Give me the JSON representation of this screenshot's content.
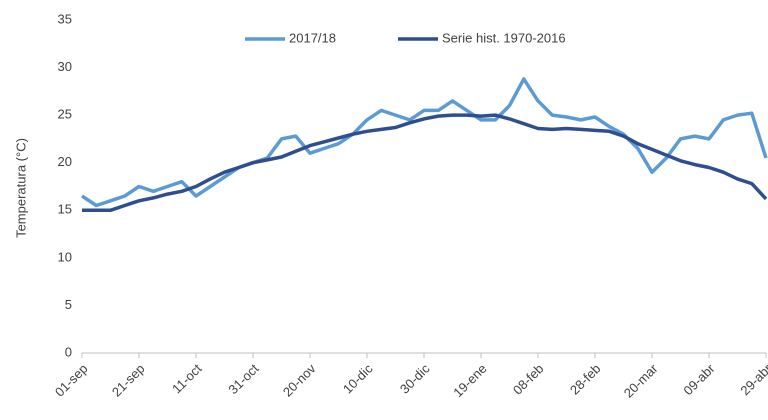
{
  "chart_data": {
    "type": "line",
    "y_label": "Temperatura (°C)",
    "categories": [
      "01-sep",
      null,
      null,
      null,
      "21-sep",
      null,
      null,
      null,
      "11-oct",
      null,
      null,
      null,
      "31-oct",
      null,
      null,
      null,
      "20-nov",
      null,
      null,
      null,
      "10-dic",
      null,
      null,
      null,
      "30-dic",
      null,
      null,
      null,
      "19-ene",
      null,
      null,
      null,
      "08-feb",
      null,
      null,
      null,
      "28-feb",
      null,
      null,
      null,
      "20-mar",
      null,
      null,
      null,
      "09-abr",
      null,
      null,
      null,
      "29-abr"
    ],
    "series": [
      {
        "name": "2017/18",
        "color": "#5b9bd5",
        "values": [
          16.5,
          15.5,
          16,
          16.5,
          17.5,
          17,
          17.5,
          18,
          16.5,
          17.5,
          18.5,
          19.5,
          20,
          20.5,
          22.5,
          22.8,
          21,
          21.5,
          22,
          23,
          24.5,
          25.5,
          25,
          24.5,
          25.5,
          25.5,
          26.5,
          25.5,
          24.5,
          24.5,
          26,
          28.8,
          26.5,
          25,
          24.8,
          24.5,
          24.8,
          23.8,
          23,
          21.5,
          19,
          20.5,
          22.5,
          22.8,
          22.5,
          24.5,
          25,
          25.2,
          20.5
        ]
      },
      {
        "name": "Serie hist. 1970-2016",
        "color": "#2f4e8f",
        "values": [
          15,
          15,
          15,
          15.5,
          16,
          16.3,
          16.7,
          17,
          17.5,
          18.3,
          19,
          19.5,
          20,
          20.3,
          20.6,
          21.2,
          21.8,
          22.2,
          22.6,
          23,
          23.3,
          23.5,
          23.7,
          24.2,
          24.6,
          24.9,
          25,
          25,
          24.9,
          25,
          24.6,
          24.1,
          23.6,
          23.5,
          23.6,
          23.5,
          23.4,
          23.3,
          22.8,
          22,
          21.4,
          20.8,
          20.2,
          19.8,
          19.5,
          19,
          18.3,
          17.8,
          16.2
        ]
      }
    ],
    "ylim": [
      0,
      35
    ],
    "yticks": [
      0,
      5,
      10,
      15,
      20,
      25,
      30,
      35
    ],
    "grid": false,
    "legend": "top"
  }
}
